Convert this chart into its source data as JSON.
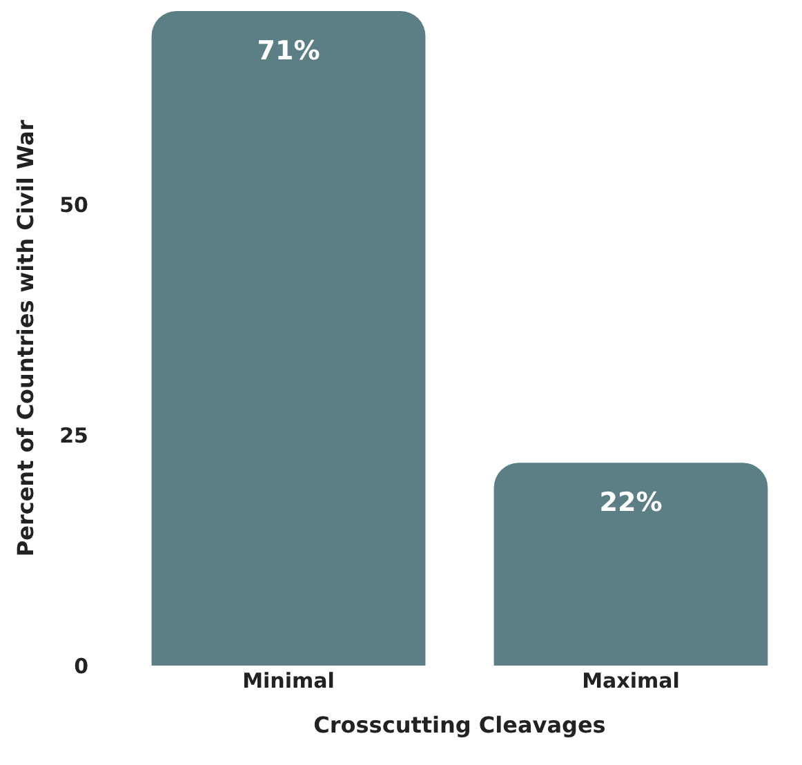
{
  "chart_data": {
    "type": "bar",
    "xlabel": "Crosscutting Cleavages",
    "ylabel": "Percent of Countries with Civil War",
    "categories": [
      "Minimal",
      "Maximal"
    ],
    "values": [
      71,
      22
    ],
    "color": "#5c7f86",
    "value_labels": [
      "71%",
      "22%"
    ],
    "ylim": [
      0,
      71
    ],
    "yticks": [
      0,
      25,
      50
    ],
    "grid": false,
    "legend": false
  }
}
